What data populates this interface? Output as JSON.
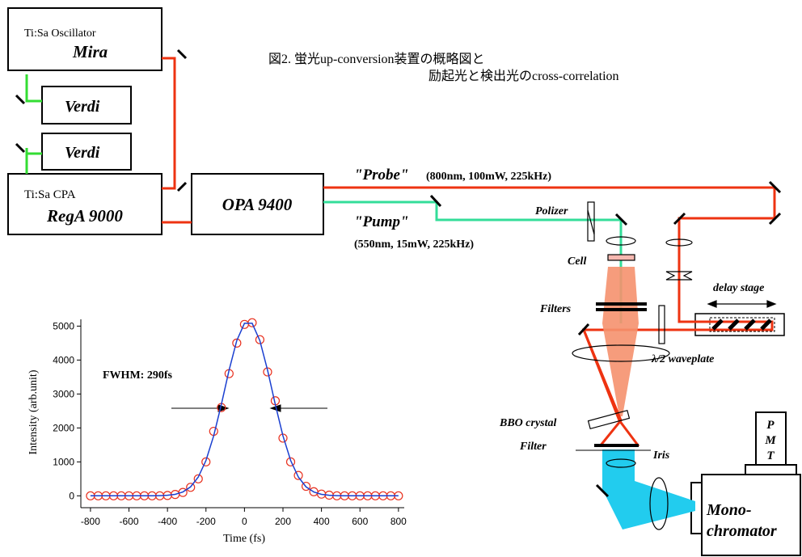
{
  "caption": [
    "図2. 蛍光up-conversion装置の概略図と",
    "励起光と検出光のcross-correlation"
  ],
  "setup": {
    "oscillator": "Ti:Sa Oscillator",
    "mira": "Mira",
    "verdi_1": "Verdi",
    "verdi_2": "Verdi",
    "cpa": "Ti:Sa CPA",
    "rega": "RegA 9000",
    "opa": "OPA 9400",
    "probe": "\"Probe\"",
    "probe_spec": "(800nm, 100mW, 225kHz)",
    "pump": "\"Pump\"",
    "pump_spec": "(550nm, 15mW, 225kHz)",
    "polizer": "Polizer",
    "cell": "Cell",
    "filters": "Filters",
    "delay_stage": "delay stage",
    "waveplate": "λ/2 waveplate",
    "bbo": "BBO crystal",
    "filter": "Filter",
    "iris": "Iris",
    "pmt": [
      "P",
      "M",
      "T"
    ],
    "mono": [
      "Mono-",
      "chromator"
    ]
  },
  "chart_data": {
    "type": "scatter",
    "x_label": "Time (fs)",
    "y_label": "Intensity (arb.unit)",
    "annotation": "FWHM: 290fs",
    "x": [
      -800,
      -760,
      -720,
      -680,
      -640,
      -600,
      -560,
      -520,
      -480,
      -440,
      -400,
      -360,
      -320,
      -280,
      -240,
      -200,
      -160,
      -120,
      -80,
      -40,
      0,
      40,
      80,
      120,
      160,
      200,
      240,
      280,
      320,
      360,
      400,
      440,
      480,
      520,
      560,
      600,
      640,
      680,
      720,
      760,
      800
    ],
    "series": [
      {
        "color": "#e8301e",
        "marker": "circle",
        "values": [
          0,
          0,
          0,
          0,
          0,
          0,
          0,
          0,
          0,
          0,
          10,
          40,
          100,
          250,
          500,
          1000,
          1900,
          2600,
          3600,
          4500,
          5050,
          5100,
          4600,
          3650,
          2800,
          1700,
          1000,
          600,
          280,
          120,
          50,
          20,
          0,
          0,
          0,
          0,
          0,
          0,
          0,
          0,
          0
        ]
      },
      {
        "color": "#1a3fd0",
        "marker": "line",
        "values": [
          0,
          0,
          0,
          0,
          0,
          0,
          0,
          0,
          0,
          5,
          15,
          44,
          113,
          263,
          552,
          1040,
          1765,
          2694,
          3701,
          4572,
          5083,
          5083,
          4572,
          3701,
          2694,
          1765,
          1040,
          552,
          263,
          113,
          44,
          15,
          5,
          0,
          0,
          0,
          0,
          0,
          0,
          0,
          0
        ]
      }
    ],
    "xlim": [
      -850,
      830
    ],
    "ylim": [
      -350,
      5200
    ],
    "xticks": [
      -800,
      -600,
      -400,
      -200,
      0,
      200,
      400,
      600,
      800
    ],
    "yticks": [
      0,
      1000,
      2000,
      3000,
      4000,
      5000
    ]
  }
}
